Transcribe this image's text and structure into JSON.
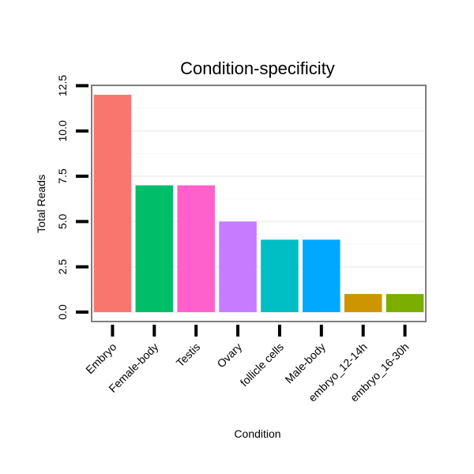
{
  "chart_data": {
    "type": "bar",
    "title": "Condition-specificity",
    "xlabel": "Condition",
    "ylabel": "Total Reads",
    "categories": [
      "Embryo",
      "Female-body",
      "Testis",
      "Ovary",
      "follicle cells",
      "Male-body",
      "embryo_12-14h",
      "embryo_16-30h"
    ],
    "values": [
      12,
      7,
      7,
      5,
      4,
      4,
      1,
      1
    ],
    "colors": [
      "#F8766D",
      "#00BE67",
      "#FF61CC",
      "#C77CFF",
      "#00BFC4",
      "#00A9FF",
      "#CD9600",
      "#7CAE00"
    ],
    "ylim": [
      -0.52,
      12.52
    ],
    "yticks": [
      0.0,
      2.5,
      5.0,
      7.5,
      10.0,
      12.5
    ],
    "ytick_labels": [
      "0.0",
      "2.5",
      "5.0",
      "7.5",
      "10.0",
      "12.5"
    ],
    "grid": true,
    "legend": "none"
  }
}
